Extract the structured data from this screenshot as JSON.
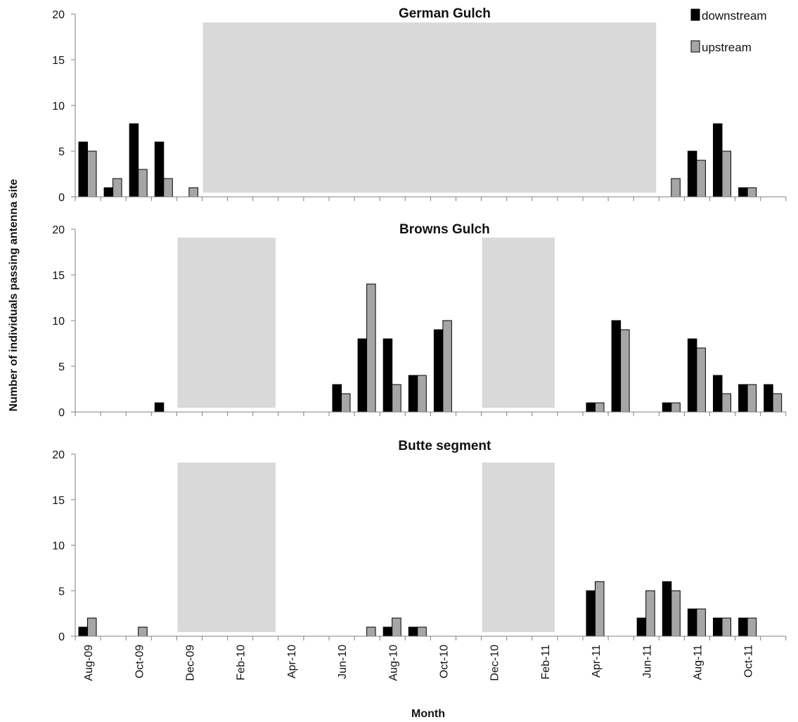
{
  "chart_data": {
    "type": "bar",
    "ylabel": "Number of individuals passing antenna site",
    "xlabel": "Month",
    "ylim": [
      0,
      20
    ],
    "yticks": [
      0,
      5,
      10,
      15,
      20
    ],
    "months": [
      "Aug-09",
      "Sep-09",
      "Oct-09",
      "Nov-09",
      "Dec-09",
      "Jan-10",
      "Feb-10",
      "Mar-10",
      "Apr-10",
      "May-10",
      "Jun-10",
      "Jul-10",
      "Aug-10",
      "Sep-10",
      "Oct-10",
      "Nov-10",
      "Dec-10",
      "Jan-11",
      "Feb-11",
      "Mar-11",
      "Apr-11",
      "May-11",
      "Jun-11",
      "Jul-11",
      "Aug-11",
      "Sep-11",
      "Oct-11",
      "Nov-11"
    ],
    "tick_labels": [
      "Aug-09",
      "",
      "Oct-09",
      "",
      "Dec-09",
      "",
      "Feb-10",
      "",
      "Apr-10",
      "",
      "Jun-10",
      "",
      "Aug-10",
      "",
      "Oct-10",
      "",
      "Dec-10",
      "",
      "Feb-11",
      "",
      "Apr-11",
      "",
      "Jun-11",
      "",
      "Aug-11",
      "",
      "Oct-11",
      ""
    ],
    "legend": {
      "position": "top-right",
      "downstream_label": "downstream",
      "upstream_label": "upstream"
    },
    "colors": {
      "downstream": "#000000",
      "upstream": "#a6a6a6",
      "shade": "#d9d9d9"
    },
    "panels": [
      {
        "title": "German  Gulch",
        "shaded_ranges": [
          [
            5,
            23
          ]
        ],
        "series": [
          {
            "name": "downstream",
            "values": [
              6,
              1,
              8,
              6,
              0,
              null,
              null,
              null,
              null,
              null,
              null,
              null,
              null,
              null,
              null,
              null,
              null,
              null,
              null,
              null,
              null,
              null,
              null,
              0,
              5,
              8,
              1,
              null
            ]
          },
          {
            "name": "upstream",
            "values": [
              5,
              2,
              3,
              2,
              1,
              null,
              null,
              null,
              null,
              null,
              null,
              null,
              null,
              null,
              null,
              null,
              null,
              null,
              null,
              null,
              null,
              null,
              null,
              2,
              4,
              5,
              1,
              null
            ]
          }
        ]
      },
      {
        "title": "Browns Gulch",
        "shaded_ranges": [
          [
            4,
            8
          ],
          [
            16,
            19
          ]
        ],
        "series": [
          {
            "name": "downstream",
            "values": [
              0,
              0,
              0,
              1,
              null,
              null,
              null,
              null,
              null,
              0,
              3,
              8,
              8,
              4,
              9,
              0,
              null,
              null,
              null,
              0,
              1,
              10,
              0,
              1,
              8,
              4,
              3,
              3
            ]
          },
          {
            "name": "upstream",
            "values": [
              0,
              0,
              0,
              0,
              null,
              null,
              null,
              null,
              null,
              0,
              2,
              14,
              3,
              4,
              10,
              0,
              null,
              null,
              null,
              0,
              1,
              9,
              0,
              1,
              7,
              2,
              3,
              2
            ]
          }
        ]
      },
      {
        "title": "Butte segment",
        "shaded_ranges": [
          [
            4,
            8
          ],
          [
            16,
            19
          ]
        ],
        "series": [
          {
            "name": "downstream",
            "values": [
              1,
              0,
              0,
              0,
              null,
              null,
              null,
              null,
              null,
              0,
              0,
              0,
              1,
              1,
              0,
              0,
              null,
              null,
              null,
              0,
              5,
              0,
              2,
              6,
              3,
              2,
              2,
              0
            ]
          },
          {
            "name": "upstream",
            "values": [
              2,
              0,
              1,
              0,
              null,
              null,
              null,
              null,
              null,
              0,
              0,
              1,
              2,
              1,
              0,
              0,
              null,
              null,
              null,
              0,
              6,
              0,
              5,
              5,
              3,
              2,
              2,
              0
            ]
          }
        ]
      }
    ]
  }
}
